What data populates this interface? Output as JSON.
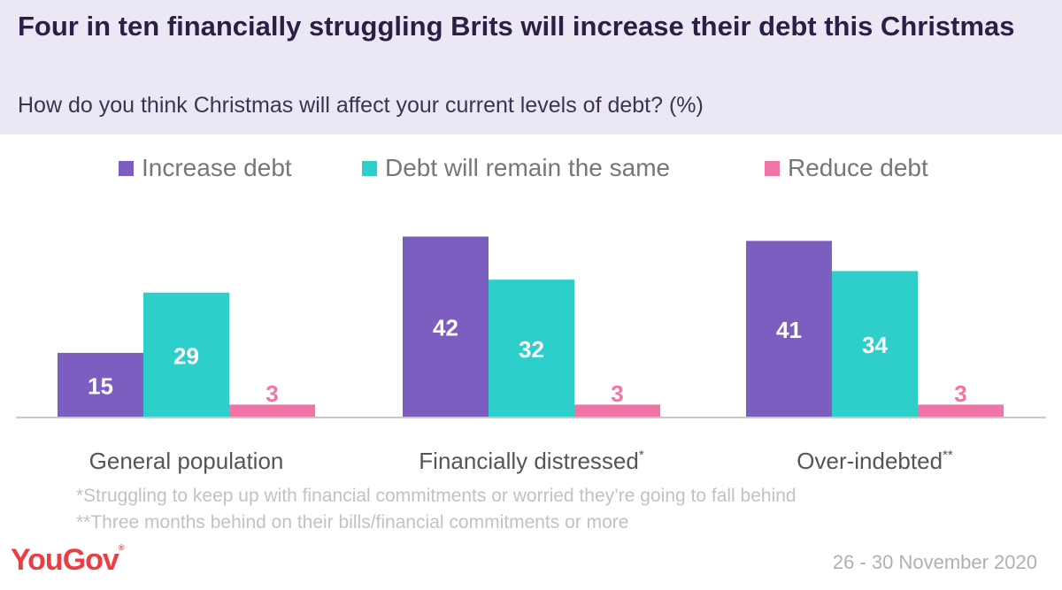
{
  "title": "Four in ten financially struggling Brits will increase their debt this Christmas",
  "subtitle": "How do you think Christmas will affect your current levels of debt? (%)",
  "footnotes": [
    "*Struggling to keep up with financial commitments or worried they’re going to fall behind",
    "**Three months behind on their bills/financial commitments or more"
  ],
  "logo": "YouGov",
  "date": "26 - 30 November 2020",
  "colors": {
    "increase": "#7b5ebf",
    "same": "#2ecfcb",
    "reduce": "#f075a6",
    "header_bg": "#ebe7f4"
  },
  "chart_data": {
    "type": "bar",
    "categories": [
      "General population",
      "Financially distressed",
      "Over-indebted"
    ],
    "category_markers": [
      "",
      "*",
      "**"
    ],
    "series": [
      {
        "name": "Increase debt",
        "values": [
          15,
          42,
          41
        ]
      },
      {
        "name": "Debt will remain the same",
        "values": [
          29,
          32,
          34
        ]
      },
      {
        "name": "Reduce debt",
        "values": [
          3,
          3,
          3
        ]
      }
    ],
    "legend_position": "top",
    "grid": false,
    "ylim": [
      0,
      45
    ],
    "data_labels": true
  }
}
